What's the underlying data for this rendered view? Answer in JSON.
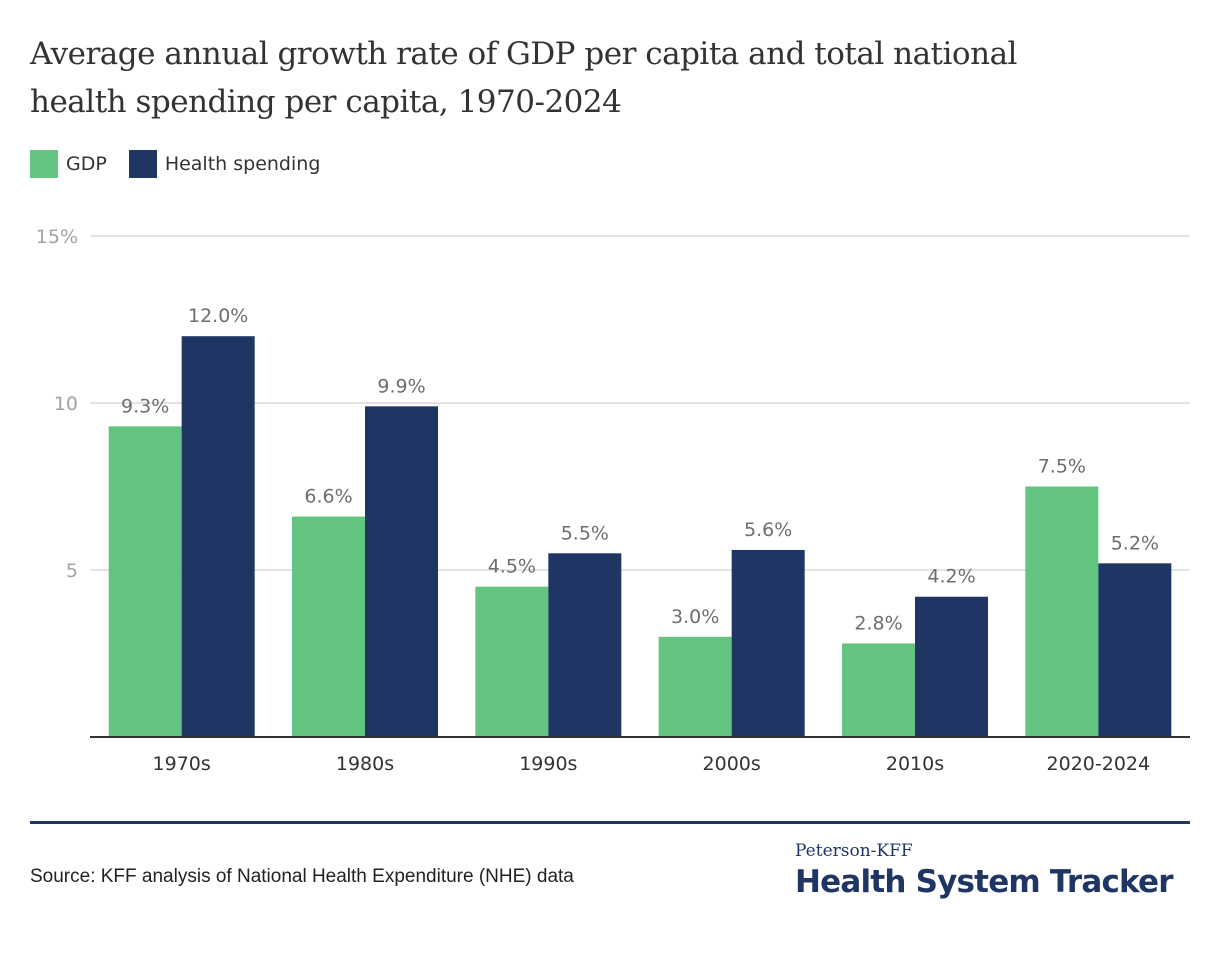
{
  "chart_data": {
    "type": "bar",
    "title": "Average annual growth rate of GDP per capita and total national health spending per capita, 1970-2024",
    "xlabel": "",
    "ylabel": "",
    "ylim": [
      0,
      15
    ],
    "yticks": [
      {
        "value": 5,
        "label": "5"
      },
      {
        "value": 10,
        "label": "10"
      },
      {
        "value": 15,
        "label": "15%"
      }
    ],
    "grid": true,
    "legend_position": "top-left",
    "categories": [
      "1970s",
      "1980s",
      "1990s",
      "2000s",
      "2010s",
      "2020-2024"
    ],
    "series": [
      {
        "name": "GDP",
        "color": "#62c47e",
        "values": [
          9.3,
          6.6,
          4.5,
          3.0,
          2.8,
          7.5
        ],
        "labels": [
          "9.3%",
          "6.6%",
          "4.5%",
          "3.0%",
          "2.8%",
          "7.5%"
        ]
      },
      {
        "name": "Health spending",
        "color": "#1f3564",
        "values": [
          12.0,
          9.9,
          5.5,
          5.6,
          4.2,
          5.2
        ],
        "labels": [
          "12.0%",
          "9.9%",
          "5.5%",
          "5.6%",
          "4.2%",
          "5.2%"
        ]
      }
    ]
  },
  "title_line1": "Average annual growth rate of GDP per capita and total national",
  "title_line2": "health spending per capita, 1970-2024",
  "source": "Source: KFF analysis of National Health Expenditure (NHE) data",
  "brand": {
    "sub": "Peterson-KFF",
    "main": "Health System Tracker"
  },
  "colors": {
    "gdp": "#62c47e",
    "health": "#1f3564",
    "grid": "#e3e3e3",
    "axis": "#333333",
    "tick_label": "#a3a3a3",
    "data_label": "#6e6e6e"
  }
}
